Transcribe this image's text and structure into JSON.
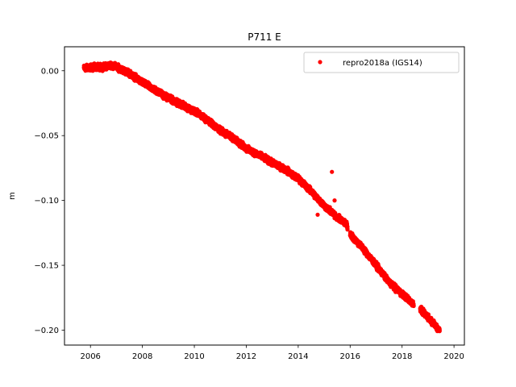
{
  "chart_data": {
    "type": "scatter",
    "title": "P711 E",
    "xlabel": "",
    "ylabel": "m",
    "xlim": [
      2005.0,
      2020.4
    ],
    "ylim": [
      -0.2115,
      0.0185
    ],
    "xticks": [
      2006,
      2008,
      2010,
      2012,
      2014,
      2016,
      2018,
      2020
    ],
    "xtick_labels": [
      "2006",
      "2008",
      "2010",
      "2012",
      "2014",
      "2016",
      "2018",
      "2020"
    ],
    "yticks": [
      0.0,
      -0.05,
      -0.1,
      -0.15,
      -0.2
    ],
    "ytick_labels": [
      "0.00",
      "−0.05",
      "−0.10",
      "−0.15",
      "−0.20"
    ],
    "grid": false,
    "legend_position": "top-right",
    "series": [
      {
        "name": "repro2018a (IGS14)",
        "color": "#ff0000",
        "marker": "circle",
        "trend": [
          [
            2005.75,
            0.002
          ],
          [
            2006.0,
            0.0025
          ],
          [
            2006.5,
            0.003
          ],
          [
            2006.8,
            0.0045
          ],
          [
            2007.0,
            0.003
          ],
          [
            2007.5,
            -0.002
          ],
          [
            2008.0,
            -0.009
          ],
          [
            2008.5,
            -0.015
          ],
          [
            2009.0,
            -0.021
          ],
          [
            2009.5,
            -0.026
          ],
          [
            2010.0,
            -0.031
          ],
          [
            2010.5,
            -0.038
          ],
          [
            2011.0,
            -0.046
          ],
          [
            2011.5,
            -0.052
          ],
          [
            2012.0,
            -0.06
          ],
          [
            2012.5,
            -0.065
          ],
          [
            2013.0,
            -0.071
          ],
          [
            2013.5,
            -0.076
          ],
          [
            2014.0,
            -0.083
          ],
          [
            2014.5,
            -0.093
          ],
          [
            2015.0,
            -0.104
          ],
          [
            2015.5,
            -0.113
          ],
          [
            2015.85,
            -0.118
          ],
          [
            2016.0,
            -0.126
          ],
          [
            2016.5,
            -0.137
          ],
          [
            2017.0,
            -0.15
          ],
          [
            2017.5,
            -0.163
          ],
          [
            2018.0,
            -0.172
          ],
          [
            2018.45,
            -0.18
          ],
          [
            2018.7,
            -0.184
          ],
          [
            2019.0,
            -0.19
          ],
          [
            2019.45,
            -0.2
          ]
        ],
        "gaps": [
          [
            2015.9,
            2016.0
          ],
          [
            2018.45,
            2018.7
          ]
        ],
        "outliers": [
          [
            2015.3,
            -0.078
          ],
          [
            2015.4,
            -0.1
          ],
          [
            2014.75,
            -0.111
          ]
        ]
      }
    ]
  }
}
